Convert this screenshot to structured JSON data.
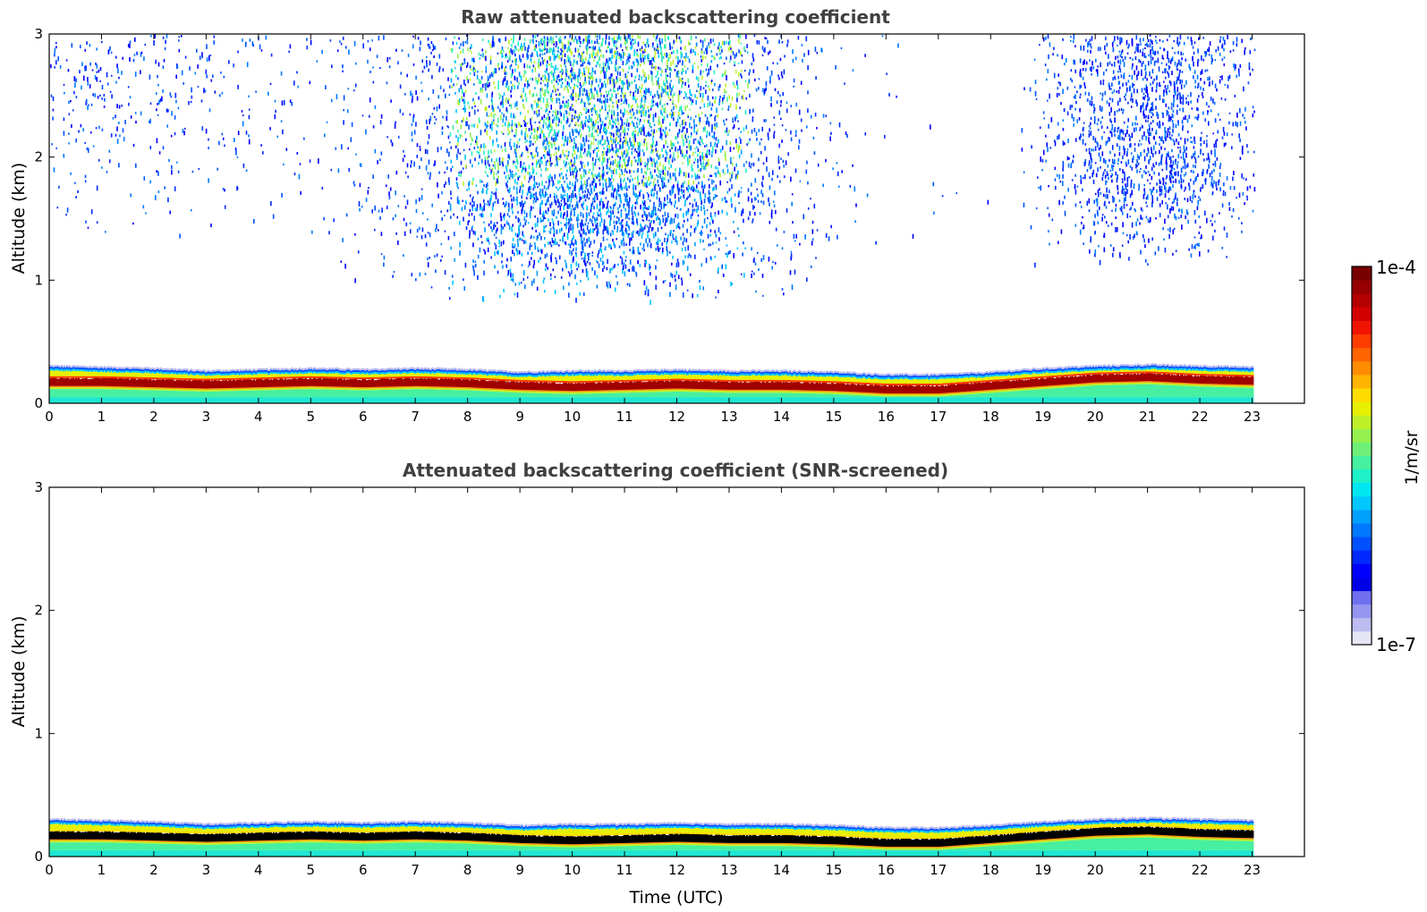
{
  "chart_data": [
    {
      "type": "heatmap",
      "title": "Raw attenuated backscattering coefficient",
      "xlabel": "",
      "ylabel": "Altitude (km)",
      "xlim": [
        0,
        24
      ],
      "ylim": [
        0,
        3
      ],
      "xticks": [
        0,
        1,
        2,
        3,
        4,
        5,
        6,
        7,
        8,
        9,
        10,
        11,
        12,
        13,
        14,
        15,
        16,
        17,
        18,
        19,
        20,
        21,
        22,
        23
      ],
      "yticks": [
        0,
        1,
        2,
        3
      ],
      "data_extent_hours": [
        0,
        23
      ],
      "boundary_layer": {
        "time_utc": [
          0,
          1,
          2,
          3,
          4,
          5,
          6,
          7,
          8,
          9,
          10,
          11,
          12,
          13,
          14,
          15,
          16,
          17,
          18,
          19,
          20,
          21,
          22,
          23
        ],
        "layer_top_km": [
          0.3,
          0.29,
          0.28,
          0.26,
          0.27,
          0.28,
          0.27,
          0.28,
          0.27,
          0.25,
          0.26,
          0.26,
          0.27,
          0.26,
          0.26,
          0.25,
          0.23,
          0.23,
          0.25,
          0.28,
          0.3,
          0.31,
          0.3,
          0.29
        ],
        "max_backscatter_center_km": [
          0.17,
          0.17,
          0.16,
          0.15,
          0.16,
          0.17,
          0.16,
          0.17,
          0.16,
          0.14,
          0.13,
          0.14,
          0.15,
          0.14,
          0.14,
          0.13,
          0.11,
          0.11,
          0.14,
          0.17,
          0.2,
          0.21,
          0.19,
          0.18
        ]
      },
      "noise": {
        "description_levels": "scattered noise above the boundary layer, densest 7-13 UTC and 19-23 UTC"
      }
    },
    {
      "type": "heatmap",
      "title": "Attenuated backscattering coefficient (SNR-screened)",
      "xlabel": "Time (UTC)",
      "ylabel": "Altitude (km)",
      "xlim": [
        0,
        24
      ],
      "ylim": [
        0,
        3
      ],
      "xticks": [
        0,
        1,
        2,
        3,
        4,
        5,
        6,
        7,
        8,
        9,
        10,
        11,
        12,
        13,
        14,
        15,
        16,
        17,
        18,
        19,
        20,
        21,
        22,
        23
      ],
      "yticks": [
        0,
        1,
        2,
        3
      ],
      "data_extent_hours": [
        0,
        23
      ],
      "saturated_core_color": "#000000"
    }
  ],
  "colorbar": {
    "label": "1/m/sr",
    "max_label": "1e-4",
    "min_label": "1e-7",
    "colors": [
      "#e6e6f5",
      "#bcbcf0",
      "#9696f0",
      "#6f6ff0",
      "#0000e6",
      "#0000ff",
      "#0028ff",
      "#0050ff",
      "#0078ff",
      "#00a0ff",
      "#00c8ff",
      "#00e6f0",
      "#1ef0c8",
      "#46f0a0",
      "#6ef078",
      "#96f050",
      "#bef028",
      "#e6f000",
      "#ffdc00",
      "#ffb400",
      "#ff8c00",
      "#ff6400",
      "#ff3c00",
      "#f01400",
      "#d20000",
      "#b40000",
      "#960000",
      "#780000"
    ]
  }
}
